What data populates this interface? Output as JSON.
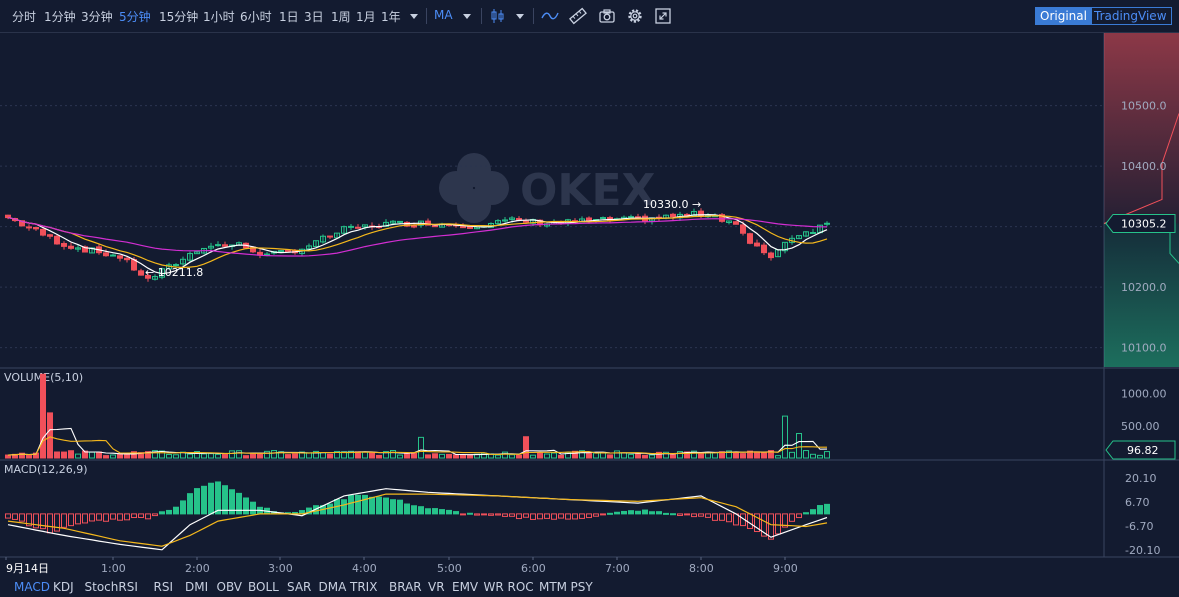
{
  "toolbar": {
    "intervals": [
      "分时",
      "1分钟",
      "3分钟",
      "5分钟",
      "15分钟",
      "1小时",
      "6小时",
      "1日",
      "3日",
      "1周",
      "1月",
      "1年"
    ],
    "active_interval": "5分钟",
    "indicator_label": "MA",
    "view_original": "Original",
    "view_tradingview": "TradingView"
  },
  "watermark": "OKEX",
  "bottom_tabs": [
    "MACD",
    "KDJ",
    "StochRSI",
    "RSI",
    "DMI",
    "OBV",
    "BOLL",
    "SAR",
    "DMA",
    "TRIX",
    "BRAR",
    "VR",
    "EMV",
    "WR",
    "ROC",
    "MTM",
    "PSY"
  ],
  "active_bottom_tab": "MACD",
  "colors": {
    "up": "#26c28a",
    "down": "#f0505a",
    "ma_fast": "#ffffff",
    "ma_mid": "#f5b81c",
    "ma_slow": "#d22ed2",
    "background": "#131b30",
    "accent": "#4c8df6"
  },
  "chart_data": [
    {
      "type": "candlestick",
      "price_axis": {
        "ticks": [
          10500.0,
          10400.0,
          10200.0,
          10100.0
        ],
        "tick_labels": [
          "10500.0",
          "10400.0",
          "10200.0",
          "10100.0"
        ],
        "range": [
          10068,
          10620
        ]
      },
      "last_price": "10305.2",
      "annotations": {
        "high_label": "10330.0 →",
        "low_label": "← 10211.8"
      },
      "time_labels": [
        "9月14日",
        "1:00",
        "2:00",
        "3:00",
        "4:00",
        "5:00",
        "6:00",
        "7:00",
        "8:00",
        "9:00"
      ],
      "bar_count": 118,
      "close_path": [
        [
          0,
          10315
        ],
        [
          8,
          10270
        ],
        [
          16,
          10250
        ],
        [
          20,
          10212
        ],
        [
          24,
          10240
        ],
        [
          28,
          10268
        ],
        [
          33,
          10270
        ],
        [
          37,
          10252
        ],
        [
          42,
          10264
        ],
        [
          48,
          10295
        ],
        [
          54,
          10305
        ],
        [
          60,
          10306
        ],
        [
          66,
          10302
        ],
        [
          72,
          10310
        ],
        [
          78,
          10306
        ],
        [
          84,
          10310
        ],
        [
          90,
          10312
        ],
        [
          96,
          10318
        ],
        [
          100,
          10322
        ],
        [
          104,
          10305
        ],
        [
          106,
          10270
        ],
        [
          109,
          10252
        ],
        [
          112,
          10284
        ],
        [
          115,
          10295
        ],
        [
          117,
          10305
        ]
      ],
      "ma_lines": [
        "white",
        "orange",
        "magenta"
      ]
    },
    {
      "type": "bar",
      "title": "VOLUME(5,10)",
      "y_ticks": [
        1000.0,
        500.0
      ],
      "tick_labels": [
        "1000.00",
        "500.00"
      ],
      "ylim": [
        0,
        1350
      ],
      "last_value": "96.82",
      "peaks": [
        [
          5,
          1300
        ],
        [
          6,
          700
        ],
        [
          59,
          320
        ],
        [
          74,
          330
        ],
        [
          111,
          650
        ],
        [
          113,
          380
        ]
      ],
      "base_level": 90
    },
    {
      "type": "bar",
      "title": "MACD(12,26,9)",
      "y_ticks": [
        20.1,
        6.7,
        -6.7,
        -20.1
      ],
      "tick_labels": [
        "20.10",
        "6.70",
        "-6.70",
        "-20.10"
      ],
      "ylim": [
        -24,
        30
      ],
      "hist_path": [
        [
          0,
          -2
        ],
        [
          6,
          -10
        ],
        [
          12,
          -4
        ],
        [
          20,
          -2
        ],
        [
          24,
          4
        ],
        [
          27,
          14
        ],
        [
          30,
          18
        ],
        [
          33,
          12
        ],
        [
          36,
          4
        ],
        [
          40,
          0
        ],
        [
          46,
          6
        ],
        [
          50,
          11
        ],
        [
          55,
          8
        ],
        [
          60,
          3
        ],
        [
          66,
          0
        ],
        [
          72,
          -2
        ],
        [
          80,
          -3
        ],
        [
          90,
          2
        ],
        [
          100,
          -2
        ],
        [
          106,
          -8
        ],
        [
          109,
          -14
        ],
        [
          112,
          -4
        ],
        [
          117,
          6
        ]
      ],
      "dif_path": [
        [
          0,
          -6
        ],
        [
          8,
          -12
        ],
        [
          16,
          -17
        ],
        [
          22,
          -20
        ],
        [
          26,
          -6
        ],
        [
          30,
          2
        ],
        [
          36,
          2
        ],
        [
          42,
          -1
        ],
        [
          48,
          10
        ],
        [
          54,
          14
        ],
        [
          60,
          12
        ],
        [
          70,
          10
        ],
        [
          80,
          8
        ],
        [
          90,
          6
        ],
        [
          99,
          10
        ],
        [
          104,
          0
        ],
        [
          109,
          -13
        ],
        [
          114,
          -6
        ],
        [
          117,
          -2
        ]
      ],
      "dea_path": [
        [
          0,
          -4
        ],
        [
          8,
          -8
        ],
        [
          16,
          -15
        ],
        [
          22,
          -18
        ],
        [
          26,
          -12
        ],
        [
          30,
          -4
        ],
        [
          36,
          0
        ],
        [
          42,
          0
        ],
        [
          48,
          5
        ],
        [
          54,
          11
        ],
        [
          60,
          11
        ],
        [
          70,
          10
        ],
        [
          80,
          8
        ],
        [
          90,
          7
        ],
        [
          99,
          9
        ],
        [
          104,
          4
        ],
        [
          109,
          -6
        ],
        [
          114,
          -7
        ],
        [
          117,
          -5
        ]
      ]
    }
  ]
}
